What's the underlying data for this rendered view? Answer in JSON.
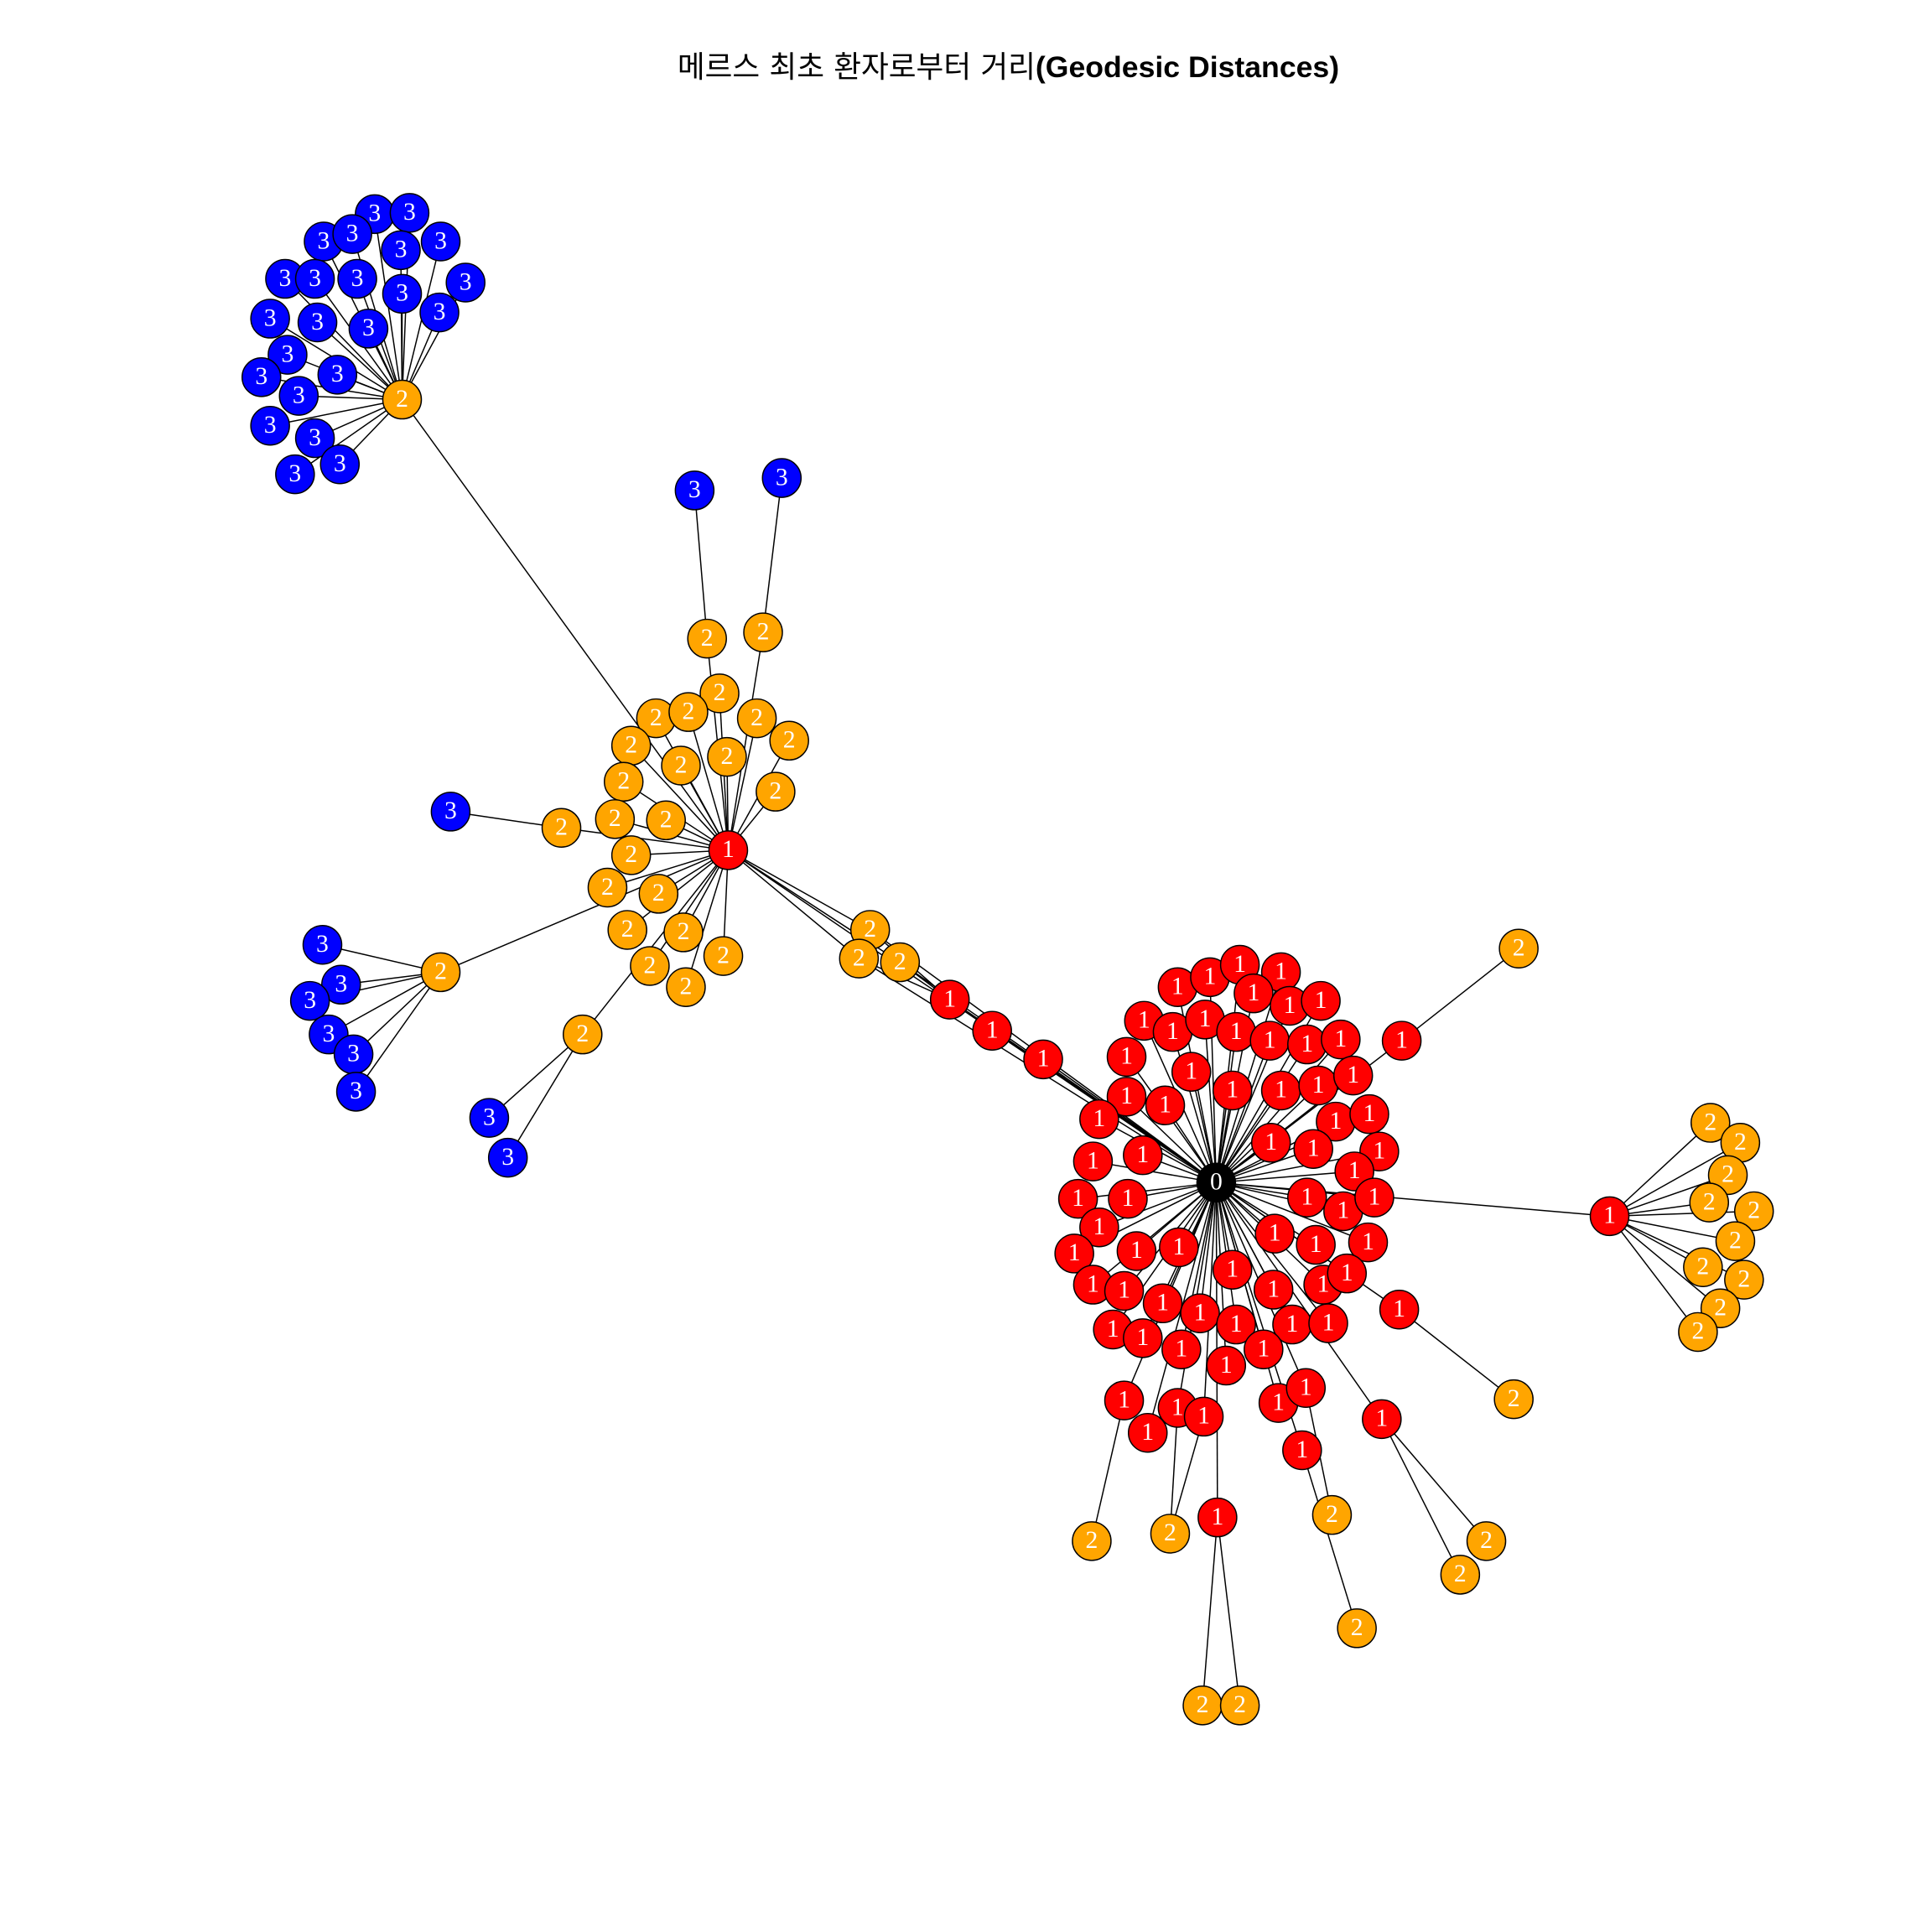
{
  "title": [
    "메르스 최초 환자로부터 거리",
    "(Geodesic Distances)"
  ],
  "node_colors": [
    "#000000",
    "#ff0000",
    "#ffa500",
    "#0000ff"
  ],
  "nodes": [
    "0",
    "1",
    "1",
    "1",
    "1",
    "1",
    "1",
    "1",
    "1",
    "1",
    "1",
    "1",
    "1",
    "1",
    "1",
    "1",
    "1",
    "1",
    "1",
    "1",
    "1",
    "1",
    "1",
    "1",
    "1",
    "1",
    "1",
    "1",
    "1",
    "1",
    "1",
    "1",
    "1",
    "1",
    "1",
    "1",
    "1",
    "1",
    "1",
    "1",
    "1",
    "1",
    "1",
    "1",
    "1",
    "1",
    "1",
    "1",
    "1",
    "1",
    "1",
    "1",
    "1",
    "1",
    "1",
    "1",
    "1",
    "1",
    "1",
    "1",
    "1",
    "1",
    "1",
    "1",
    "1",
    "1",
    "1",
    "1",
    "1",
    "1",
    "1",
    "1",
    "1",
    "1",
    "1",
    "1",
    "2",
    "2",
    "2",
    "2",
    "2",
    "2",
    "2",
    "2",
    "2",
    "2",
    "2",
    "2",
    "2",
    "2",
    "2",
    "2",
    "2",
    "2",
    "2",
    "2",
    "2",
    "2",
    "2",
    "2",
    "2",
    "2",
    "2",
    "2",
    "2",
    "2",
    "2",
    "2",
    "2",
    "2",
    "2",
    "2",
    "2",
    "2",
    "2",
    "2",
    "2",
    "2",
    "2",
    "2",
    "2",
    "2",
    "2",
    "2",
    "2",
    "3",
    "3",
    "3",
    "3",
    "3",
    "3",
    "3",
    "3",
    "3",
    "3",
    "3",
    "3",
    "3",
    "3",
    "3",
    "3",
    "3",
    "3",
    "3",
    "3",
    "3",
    "3",
    "3",
    "3",
    "3",
    "3",
    "3",
    "3",
    "3",
    "3",
    "3",
    "3",
    "3",
    "3"
  ]
}
